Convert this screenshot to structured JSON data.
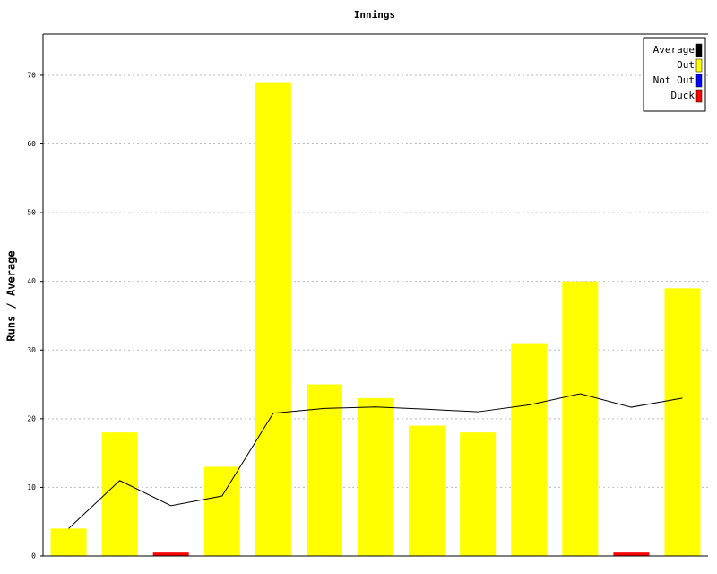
{
  "chart_data": {
    "type": "bar",
    "title": "Innings",
    "y_label": "Runs / Average",
    "series": [
      {
        "name": "Average",
        "type": "line",
        "color": "#000000",
        "values": [
          4,
          11,
          7.33,
          8.75,
          20.8,
          21.5,
          21.71,
          21.38,
          21,
          22,
          23.64,
          21.67,
          23
        ]
      },
      {
        "name": "Out",
        "color": "#ffff00",
        "values": [
          4,
          18,
          null,
          13,
          69,
          25,
          23,
          19,
          18,
          31,
          40,
          null,
          39
        ]
      },
      {
        "name": "Not Out",
        "color": "#0000ff",
        "values": [
          null,
          null,
          null,
          null,
          null,
          null,
          null,
          null,
          null,
          null,
          null,
          null,
          null
        ]
      },
      {
        "name": "Duck",
        "color": "#ff0000",
        "values": [
          null,
          null,
          0.5,
          null,
          null,
          null,
          null,
          null,
          null,
          null,
          null,
          0.5,
          null
        ]
      }
    ],
    "ylim": [
      0,
      76
    ],
    "yticks": [
      0,
      10,
      20,
      30,
      40,
      50,
      60,
      70
    ],
    "grid": true,
    "legend": "top-right"
  }
}
